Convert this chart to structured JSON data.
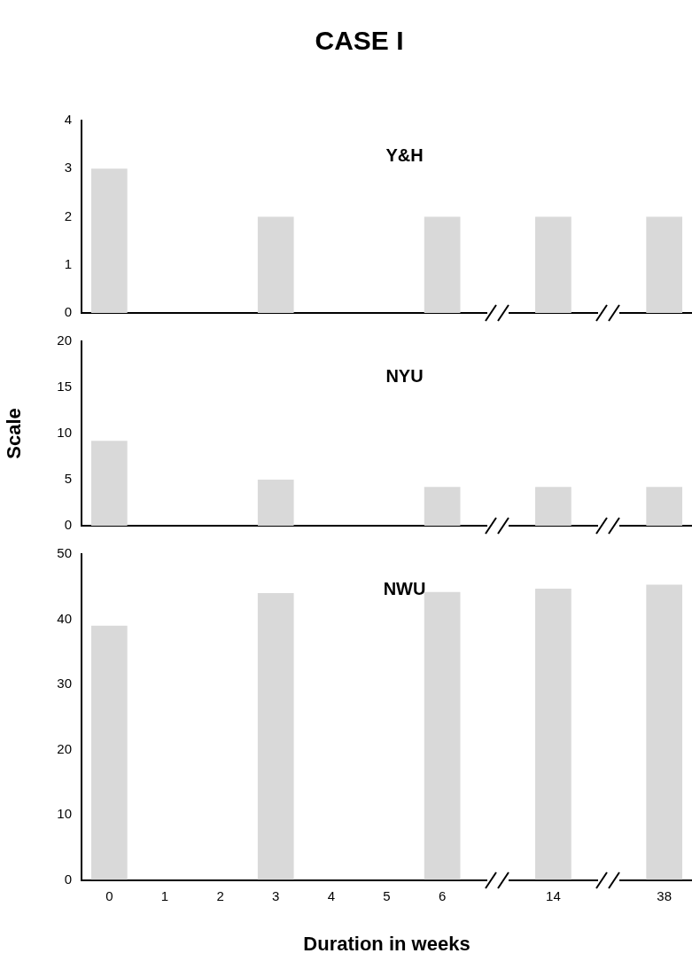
{
  "chart_data": [
    {
      "type": "bar",
      "title": "CASE I",
      "annotations": [
        "Y&H"
      ],
      "categories": [
        "0",
        "1",
        "2",
        "3",
        "4",
        "5",
        "6",
        null,
        "14",
        null,
        "38"
      ],
      "values": [
        3,
        null,
        null,
        2,
        null,
        null,
        2,
        null,
        2,
        null,
        2
      ],
      "color": "#d9d9d9",
      "ylim": [
        0,
        4
      ],
      "yticks": [
        0,
        1,
        2,
        3,
        4
      ],
      "grid": false,
      "legend": false,
      "tick_labels": "y"
    },
    {
      "type": "bar",
      "ylabel": "Scale",
      "annotations": [
        "NYU"
      ],
      "categories": [
        "0",
        "1",
        "2",
        "3",
        "4",
        "5",
        "6",
        null,
        "14",
        null,
        "38"
      ],
      "values": [
        9.2,
        null,
        null,
        5,
        null,
        null,
        4.2,
        null,
        4.2,
        null,
        4.2
      ],
      "color": "#d9d9d9",
      "ylim": [
        0,
        20
      ],
      "yticks": [
        0,
        5,
        10,
        15,
        20
      ],
      "grid": false,
      "legend": false,
      "tick_labels": "y"
    },
    {
      "type": "bar",
      "xlabel": "Duration in weeks",
      "annotations": [
        "NWU"
      ],
      "categories": [
        "0",
        "1",
        "2",
        "3",
        "4",
        "5",
        "6",
        null,
        "14",
        null,
        "38"
      ],
      "values": [
        39,
        null,
        null,
        44,
        null,
        null,
        44.2,
        null,
        44.7,
        null,
        45.3
      ],
      "color": "#d9d9d9",
      "ylim": [
        0,
        50
      ],
      "yticks": [
        0,
        10,
        20,
        30,
        40,
        50
      ],
      "grid": false,
      "legend": false
    }
  ]
}
